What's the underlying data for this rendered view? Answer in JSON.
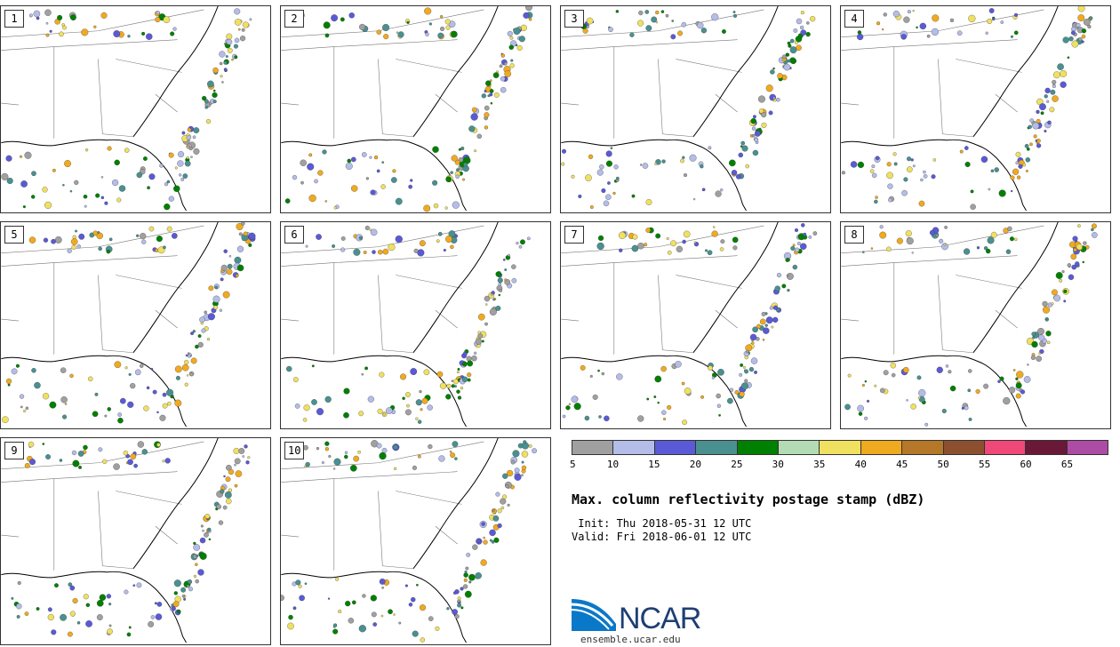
{
  "panels": [
    {
      "label": "1"
    },
    {
      "label": "2"
    },
    {
      "label": "3"
    },
    {
      "label": "4"
    },
    {
      "label": "5"
    },
    {
      "label": "6"
    },
    {
      "label": "7"
    },
    {
      "label": "8"
    },
    {
      "label": "9"
    },
    {
      "label": "10"
    }
  ],
  "colorbar": {
    "colors": [
      "#a0a0a0",
      "#b4bce8",
      "#5a5ad6",
      "#4a9090",
      "#008000",
      "#b4dcb4",
      "#f0e060",
      "#f0aa20",
      "#b47828",
      "#8c5030",
      "#f04878",
      "#6a1838",
      "#ac4ca4"
    ],
    "ticks": [
      "5",
      "10",
      "15",
      "20",
      "25",
      "30",
      "35",
      "40",
      "45",
      "50",
      "55",
      "60",
      "65"
    ]
  },
  "title": "Max. column reflectivity postage stamp (dBZ)",
  "init": " Init: Thu 2018-05-31 12 UTC",
  "valid": "Valid: Fri 2018-06-01 12 UTC",
  "logo": {
    "text": "NCAR",
    "url": "ensemble.ucar.edu",
    "color": "#1f3f73"
  }
}
